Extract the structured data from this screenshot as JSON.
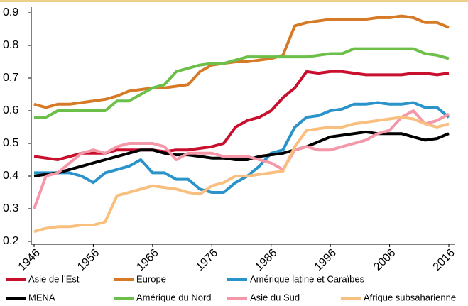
{
  "chart_data": {
    "type": "line",
    "x": [
      1946,
      1948,
      1950,
      1952,
      1954,
      1956,
      1958,
      1960,
      1962,
      1964,
      1966,
      1968,
      1970,
      1972,
      1974,
      1976,
      1978,
      1980,
      1982,
      1984,
      1986,
      1988,
      1990,
      1992,
      1994,
      1996,
      1998,
      2000,
      2002,
      2004,
      2006,
      2008,
      2010,
      2012,
      2014,
      2016
    ],
    "xlim": [
      1946,
      2016
    ],
    "xticks": [
      1946,
      1956,
      1966,
      1976,
      1986,
      1996,
      2006,
      2016
    ],
    "ylim": [
      0.2,
      0.9
    ],
    "yticks": [
      0.2,
      0.3,
      0.4,
      0.5,
      0.6,
      0.7,
      0.8,
      0.9
    ],
    "series": [
      {
        "name": "Asie de l’Est",
        "color": "#c8102e",
        "values": [
          0.46,
          0.455,
          0.45,
          0.46,
          0.47,
          0.47,
          0.47,
          0.48,
          0.48,
          0.48,
          0.48,
          0.475,
          0.48,
          0.48,
          0.485,
          0.49,
          0.5,
          0.55,
          0.57,
          0.58,
          0.6,
          0.64,
          0.67,
          0.72,
          0.715,
          0.72,
          0.72,
          0.715,
          0.71,
          0.71,
          0.71,
          0.71,
          0.715,
          0.715,
          0.71,
          0.715
        ]
      },
      {
        "name": "Europe",
        "color": "#d67a27",
        "values": [
          0.62,
          0.61,
          0.62,
          0.62,
          0.625,
          0.63,
          0.635,
          0.645,
          0.66,
          0.665,
          0.67,
          0.67,
          0.675,
          0.68,
          0.72,
          0.74,
          0.745,
          0.75,
          0.75,
          0.755,
          0.76,
          0.77,
          0.86,
          0.87,
          0.875,
          0.88,
          0.88,
          0.88,
          0.88,
          0.885,
          0.885,
          0.89,
          0.885,
          0.87,
          0.87,
          0.855
        ]
      },
      {
        "name": "Amérique latine et Caraïbes",
        "color": "#2a93c9",
        "values": [
          0.41,
          0.41,
          0.41,
          0.41,
          0.4,
          0.38,
          0.41,
          0.42,
          0.43,
          0.45,
          0.41,
          0.41,
          0.39,
          0.39,
          0.36,
          0.35,
          0.35,
          0.38,
          0.4,
          0.43,
          0.47,
          0.48,
          0.55,
          0.58,
          0.585,
          0.6,
          0.605,
          0.62,
          0.62,
          0.625,
          0.62,
          0.62,
          0.625,
          0.61,
          0.61,
          0.58
        ]
      },
      {
        "name": "MENA",
        "color": "#000000",
        "values": [
          0.4,
          0.405,
          0.41,
          0.42,
          0.43,
          0.44,
          0.45,
          0.46,
          0.47,
          0.48,
          0.48,
          0.47,
          0.465,
          0.465,
          0.46,
          0.455,
          0.455,
          0.45,
          0.45,
          0.46,
          0.465,
          0.47,
          0.48,
          0.49,
          0.505,
          0.52,
          0.525,
          0.53,
          0.535,
          0.53,
          0.53,
          0.53,
          0.52,
          0.51,
          0.515,
          0.53
        ]
      },
      {
        "name": "Amérique du Nord",
        "color": "#6cc04a",
        "values": [
          0.58,
          0.58,
          0.6,
          0.6,
          0.6,
          0.6,
          0.6,
          0.63,
          0.63,
          0.65,
          0.67,
          0.68,
          0.72,
          0.73,
          0.74,
          0.745,
          0.745,
          0.755,
          0.765,
          0.765,
          0.765,
          0.765,
          0.765,
          0.765,
          0.77,
          0.775,
          0.775,
          0.79,
          0.79,
          0.79,
          0.79,
          0.79,
          0.79,
          0.775,
          0.77,
          0.76
        ]
      },
      {
        "name": "Asie du Sud",
        "color": "#f497a9",
        "values": [
          0.3,
          0.4,
          0.41,
          0.44,
          0.47,
          0.48,
          0.47,
          0.49,
          0.5,
          0.5,
          0.5,
          0.49,
          0.45,
          0.47,
          0.47,
          0.47,
          0.46,
          0.46,
          0.46,
          0.45,
          0.44,
          0.42,
          0.48,
          0.49,
          0.48,
          0.48,
          0.49,
          0.5,
          0.51,
          0.53,
          0.54,
          0.58,
          0.6,
          0.56,
          0.57,
          0.59
        ]
      },
      {
        "name": "Afrique subsaharienne",
        "color": "#f9bf7f",
        "values": [
          0.23,
          0.24,
          0.245,
          0.245,
          0.25,
          0.25,
          0.26,
          0.34,
          0.35,
          0.36,
          0.37,
          0.365,
          0.36,
          0.35,
          0.345,
          0.37,
          0.38,
          0.4,
          0.4,
          0.405,
          0.41,
          0.415,
          0.49,
          0.54,
          0.545,
          0.55,
          0.55,
          0.56,
          0.565,
          0.57,
          0.575,
          0.58,
          0.575,
          0.56,
          0.55,
          0.56
        ]
      }
    ]
  }
}
